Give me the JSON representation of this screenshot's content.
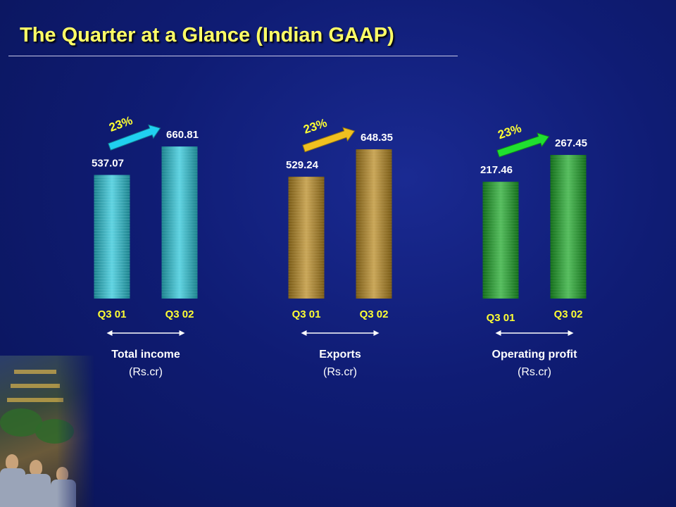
{
  "title": "The Quarter at a Glance (Indian GAAP)",
  "colors": {
    "background": "#10207a",
    "title": "#ffff66",
    "axis_label": "#ffff33",
    "value_label": "#ffffff",
    "total_income": "#2cc6d8",
    "exports": "#b88a22",
    "operating_profit": "#1fa82a"
  },
  "chart_data": [
    {
      "type": "bar",
      "title": "Total income",
      "unit": "(Rs.cr)",
      "categories": [
        "Q3 01",
        "Q3 02"
      ],
      "values": [
        537.07,
        660.81
      ],
      "value_labels": [
        "537.07",
        "660.81"
      ],
      "growth_label": "23%",
      "color": "#2cc6d8",
      "arrow_color": "#20d0f0"
    },
    {
      "type": "bar",
      "title": "Exports",
      "unit": "(Rs.cr)",
      "categories": [
        "Q3 01",
        "Q3 02"
      ],
      "values": [
        529.24,
        648.35
      ],
      "value_labels": [
        "529.24",
        "648.35"
      ],
      "growth_label": "23%",
      "color": "#b88a22",
      "arrow_color": "#f0c020"
    },
    {
      "type": "bar",
      "title": "Operating profit",
      "unit": "(Rs.cr)",
      "categories": [
        "Q3 01",
        "Q3 02"
      ],
      "values": [
        217.46,
        267.45
      ],
      "value_labels": [
        "217.46",
        "267.45"
      ],
      "growth_label": "23%",
      "color": "#1fa82a",
      "arrow_color": "#20e030"
    }
  ]
}
